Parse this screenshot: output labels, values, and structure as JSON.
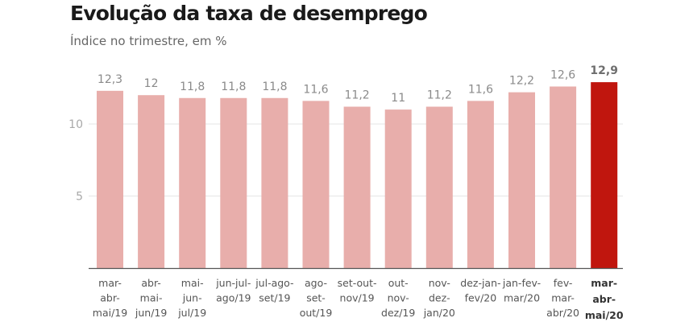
{
  "chart_data": {
    "type": "bar",
    "title": "Evolução da taxa de desemprego",
    "subtitle": "Índice no trimestre, em %",
    "xlabel": "",
    "ylabel": "",
    "ylim": [
      0,
      13
    ],
    "yticks": [
      5,
      10
    ],
    "grid": true,
    "categories": [
      [
        "mar-",
        "abr-",
        "mai/19"
      ],
      [
        "abr-",
        "mai-",
        "jun/19"
      ],
      [
        "mai-",
        "jun-",
        "jul/19"
      ],
      [
        "jun-jul-",
        "ago/19"
      ],
      [
        "jul-ago-",
        "set/19"
      ],
      [
        "ago-",
        "set-",
        "out/19"
      ],
      [
        "set-out-",
        "nov/19"
      ],
      [
        "out-",
        "nov-",
        "dez/19"
      ],
      [
        "nov-",
        "dez-",
        "jan/20"
      ],
      [
        "dez-jan-",
        "fev/20"
      ],
      [
        "jan-fev-",
        "mar/20"
      ],
      [
        "fev-",
        "mar-",
        "abr/20"
      ],
      [
        "mar-",
        "abr-",
        "mai/20"
      ]
    ],
    "values": [
      12.3,
      12,
      11.8,
      11.8,
      11.8,
      11.6,
      11.2,
      11,
      11.2,
      11.6,
      12.2,
      12.6,
      12.9
    ],
    "value_labels": [
      "12,3",
      "12",
      "11,8",
      "11,8",
      "11,8",
      "11,6",
      "11,2",
      "11",
      "11,2",
      "11,6",
      "12,2",
      "12,6",
      "12,9"
    ],
    "highlight_index": 12,
    "colors": {
      "default": "#e8aeab",
      "highlight": "#c0160e",
      "grid": "#e6e6e6",
      "axis": "#555555"
    }
  }
}
